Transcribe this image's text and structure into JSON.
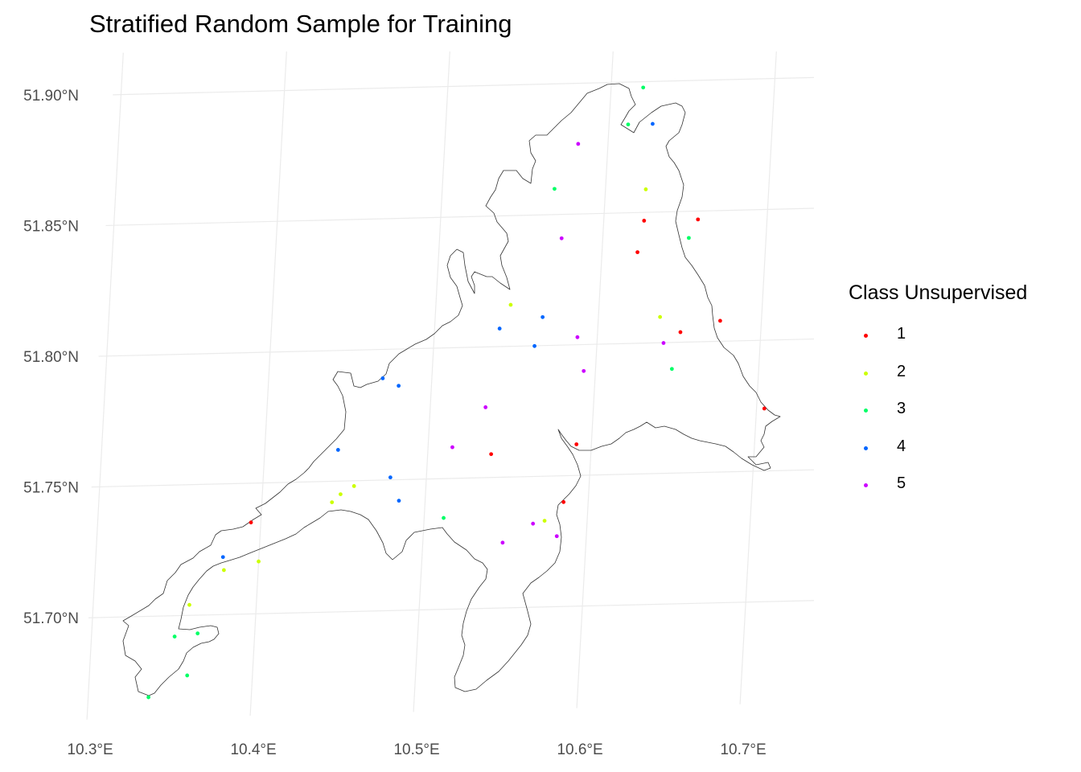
{
  "chart_data": {
    "type": "scatter",
    "title": "Stratified Random Sample for Training",
    "xlabel": "",
    "ylabel": "",
    "xlim": [
      10.295,
      10.745
    ],
    "ylim": [
      51.661,
      51.916
    ],
    "x_ticks": [
      10.3,
      10.4,
      10.5,
      10.6,
      10.7
    ],
    "x_tick_labels": [
      "10.3°E",
      "10.4°E",
      "10.5°E",
      "10.6°E",
      "10.7°E"
    ],
    "y_ticks": [
      51.7,
      51.75,
      51.8,
      51.85,
      51.9
    ],
    "y_tick_labels": [
      "51.70°N",
      "51.75°N",
      "51.80°N",
      "51.85°N",
      "51.90°N"
    ],
    "grid": true,
    "legend": {
      "title": "Class Unsupervised",
      "placement": "right",
      "entries": [
        {
          "label": "1",
          "color": "#ff0000"
        },
        {
          "label": "2",
          "color": "#ccff00"
        },
        {
          "label": "3",
          "color": "#00ff66"
        },
        {
          "label": "4",
          "color": "#0066ff"
        },
        {
          "label": "5",
          "color": "#cc00ff"
        }
      ]
    },
    "series": [
      {
        "name": "1",
        "color": "#ff0000",
        "points": [
          [
            10.625,
            51.847
          ],
          [
            10.658,
            51.847
          ],
          [
            10.622,
            51.835
          ],
          [
            10.675,
            51.808
          ],
          [
            10.651,
            51.804
          ],
          [
            10.705,
            51.774
          ],
          [
            10.539,
            51.759
          ],
          [
            10.591,
            51.762
          ],
          [
            10.585,
            51.74
          ],
          [
            10.394,
            51.735
          ]
        ]
      },
      {
        "name": "2",
        "color": "#ccff00",
        "points": [
          [
            10.625,
            51.859
          ],
          [
            10.546,
            51.816
          ],
          [
            10.638,
            51.81
          ],
          [
            10.456,
            51.748
          ],
          [
            10.448,
            51.745
          ],
          [
            10.443,
            51.742
          ],
          [
            10.574,
            51.733
          ],
          [
            10.4,
            51.72
          ],
          [
            10.379,
            51.717
          ],
          [
            10.359,
            51.704
          ]
        ]
      },
      {
        "name": "3",
        "color": "#00ff66",
        "points": [
          [
            10.62,
            51.898
          ],
          [
            10.612,
            51.884
          ],
          [
            10.569,
            51.86
          ],
          [
            10.653,
            51.84
          ],
          [
            10.647,
            51.79
          ],
          [
            10.512,
            51.735
          ],
          [
            10.365,
            51.693
          ],
          [
            10.351,
            51.692
          ],
          [
            10.36,
            51.677
          ],
          [
            10.337,
            51.669
          ]
        ]
      },
      {
        "name": "4",
        "color": "#0066ff",
        "points": [
          [
            10.627,
            51.884
          ],
          [
            10.566,
            51.811
          ],
          [
            10.54,
            51.807
          ],
          [
            10.562,
            51.8
          ],
          [
            10.47,
            51.789
          ],
          [
            10.48,
            51.786
          ],
          [
            10.445,
            51.762
          ],
          [
            10.478,
            51.751
          ],
          [
            10.484,
            51.742
          ],
          [
            10.378,
            51.722
          ]
        ]
      },
      {
        "name": "5",
        "color": "#cc00ff",
        "points": [
          [
            10.582,
            51.877
          ],
          [
            10.575,
            51.841
          ],
          [
            10.588,
            51.803
          ],
          [
            10.641,
            51.8
          ],
          [
            10.593,
            51.79
          ],
          [
            10.534,
            51.777
          ],
          [
            10.515,
            51.762
          ],
          [
            10.567,
            51.732
          ],
          [
            10.549,
            51.725
          ],
          [
            10.582,
            51.727
          ]
        ]
      }
    ]
  }
}
